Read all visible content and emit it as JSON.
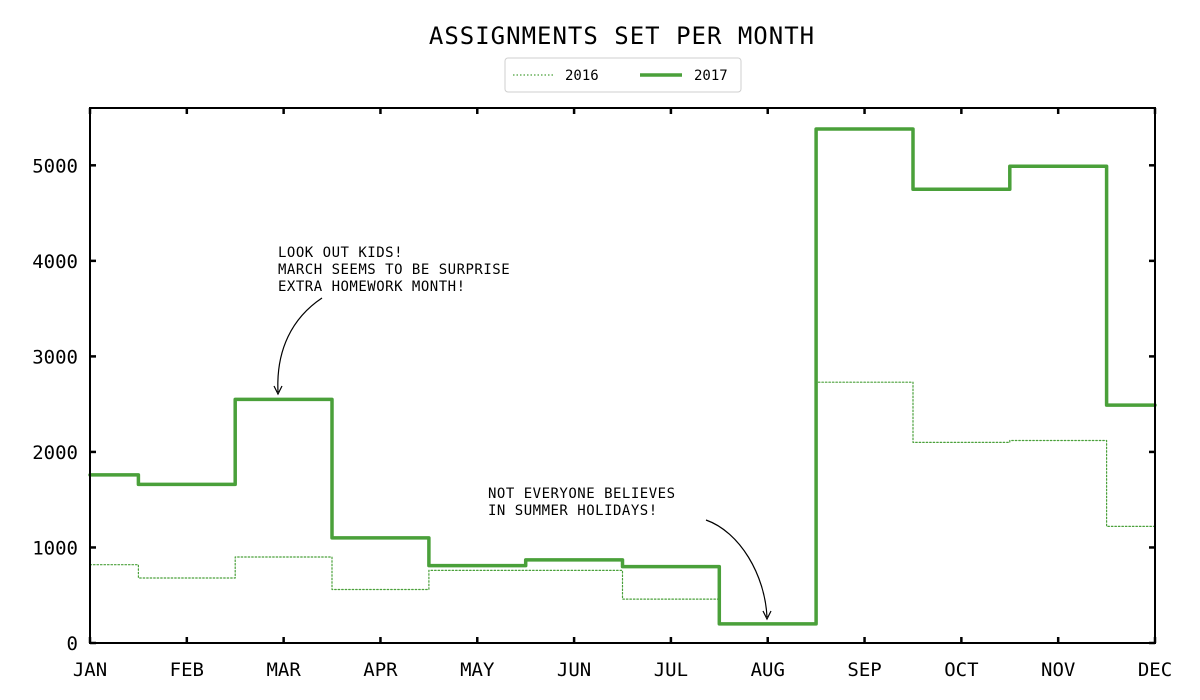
{
  "chart_data": {
    "type": "line",
    "drawstyle": "steps",
    "title": "ASSIGNMENTS SET PER MONTH",
    "xlabel": "",
    "ylabel": "",
    "categories": [
      "JAN",
      "FEB",
      "MAR",
      "APR",
      "MAY",
      "JUN",
      "JUL",
      "AUG",
      "SEP",
      "OCT",
      "NOV",
      "DEC"
    ],
    "ylim": [
      0,
      5600
    ],
    "yticks": [
      0,
      1000,
      2000,
      3000,
      4000,
      5000
    ],
    "series": [
      {
        "name": "2016",
        "color": "#4aa03a",
        "style": "dotted",
        "values": [
          820,
          680,
          900,
          560,
          760,
          760,
          460,
          200,
          2730,
          2100,
          2120,
          1220
        ]
      },
      {
        "name": "2017",
        "color": "#4aa03a",
        "style": "solid",
        "values": [
          1760,
          1660,
          2550,
          1100,
          810,
          870,
          800,
          200,
          5380,
          4750,
          4990,
          2490
        ]
      }
    ],
    "grid": false,
    "legend": "top-center",
    "annotations": [
      {
        "lines": [
          "LOOK OUT KIDS!",
          "MARCH SEEMS TO BE SURPRISE",
          "EXTRA HOMEWORK MONTH!"
        ],
        "target_category": "MAR"
      },
      {
        "lines": [
          "NOT EVERYONE BELIEVES",
          "IN SUMMER HOLIDAYS!"
        ],
        "target_category": "AUG"
      }
    ]
  }
}
